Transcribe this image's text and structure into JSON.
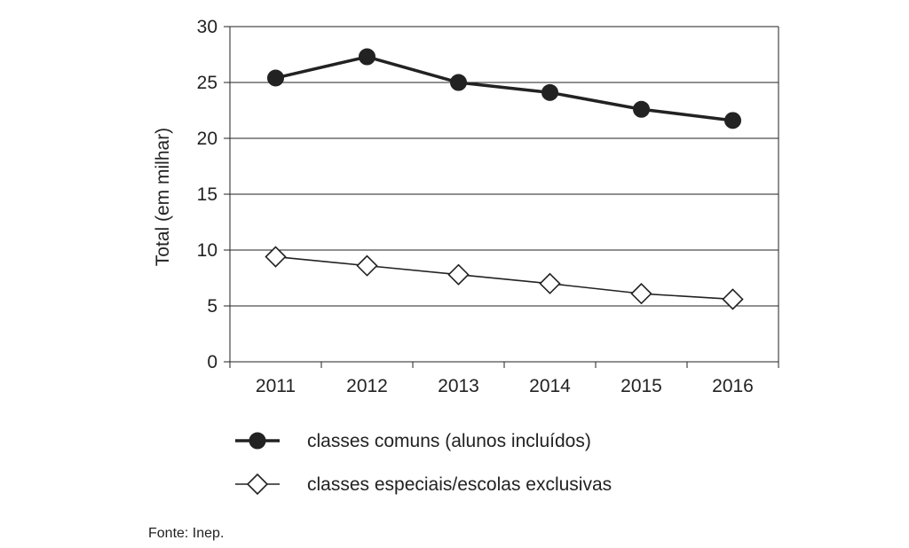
{
  "chart_data": {
    "type": "line",
    "categories": [
      "2011",
      "2012",
      "2013",
      "2014",
      "2015",
      "2016"
    ],
    "series": [
      {
        "name": "classes comuns (alunos incluídos)",
        "values": [
          25.4,
          27.3,
          25.0,
          24.1,
          22.6,
          21.6
        ],
        "marker": "filled-circle",
        "color": "#222222"
      },
      {
        "name": "classes especiais/escolas exclusivas",
        "values": [
          9.4,
          8.6,
          7.8,
          7.0,
          6.1,
          5.6
        ],
        "marker": "open-diamond",
        "color": "#222222"
      }
    ],
    "ylabel": "Total (em milhar)",
    "xlabel": "",
    "ylim": [
      0,
      30
    ],
    "yticks": [
      "0",
      "5",
      "10",
      "15",
      "20",
      "25",
      "30"
    ],
    "grid": "horizontal",
    "legend_position": "bottom"
  },
  "source_note": "Fonte: Inep."
}
